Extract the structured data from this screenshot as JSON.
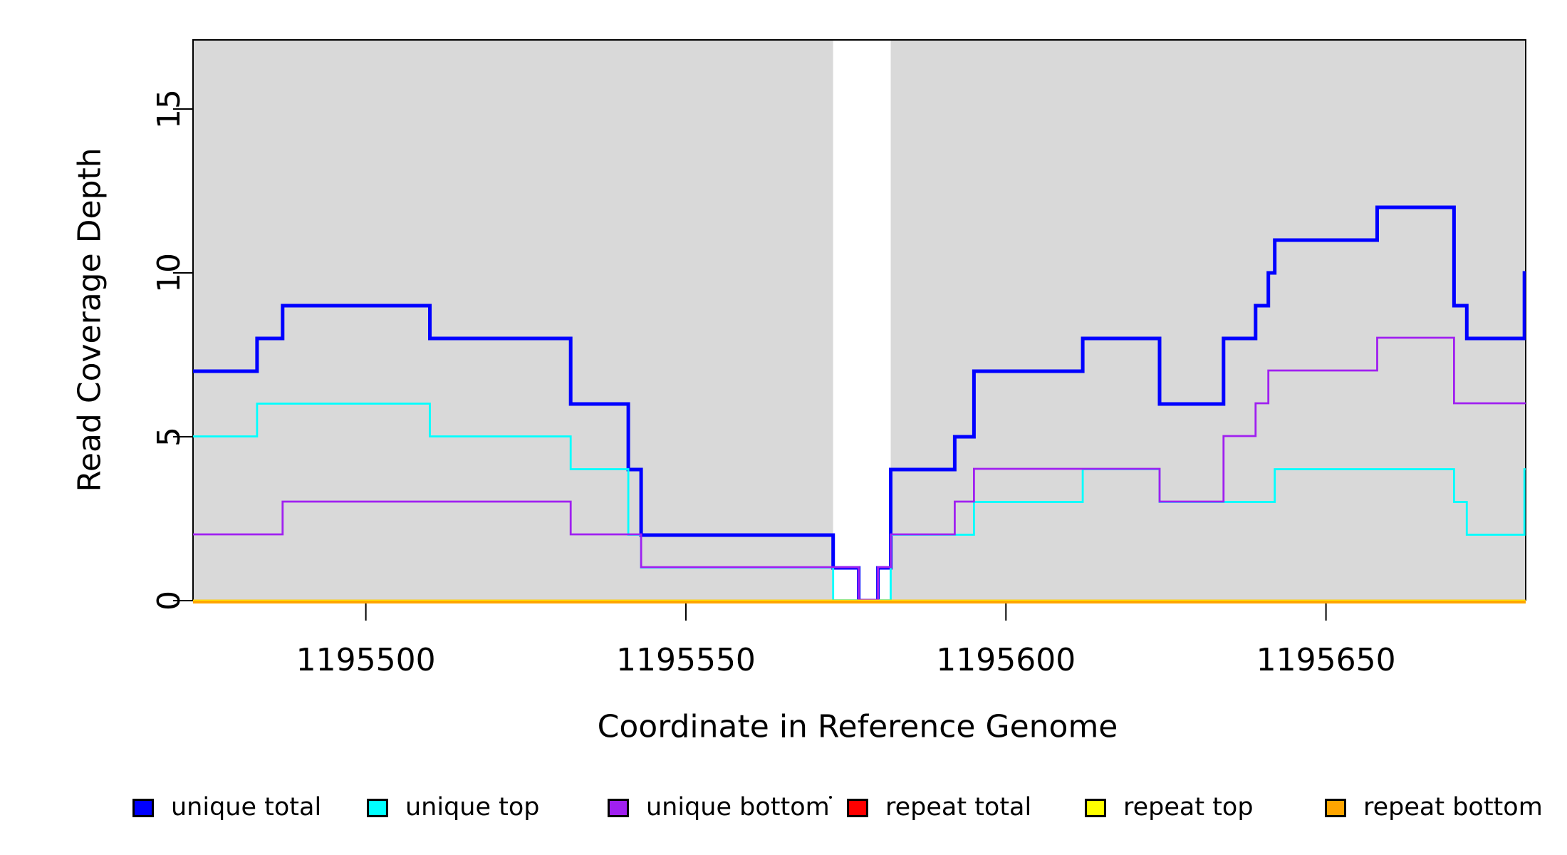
{
  "chart_data": {
    "type": "line",
    "subtype": "step",
    "title": "",
    "xlabel": "Coordinate in Reference Genome",
    "ylabel": "Read Coverage Depth",
    "xlim": [
      1195473,
      1195681.2
    ],
    "ylim": [
      0,
      17.11
    ],
    "x_ticks": [
      1195500,
      1195550,
      1195600,
      1195650
    ],
    "y_ticks": [
      0,
      5,
      10,
      15
    ],
    "grid": false,
    "plot_background": "#FFFFFF",
    "shaded_regions": [
      {
        "x_start": 1195473,
        "x_end": 1195573,
        "color": "#D9D9D9"
      },
      {
        "x_start": 1195582,
        "x_end": 1195681.2,
        "color": "#D9D9D9"
      }
    ],
    "box_color": "#000000",
    "tick_color": "#000000",
    "series": [
      {
        "name": "unique total",
        "color": "#0000FF",
        "line_width": 5,
        "steps": [
          [
            1195473,
            7
          ],
          [
            1195483,
            8
          ],
          [
            1195487,
            9
          ],
          [
            1195510,
            8
          ],
          [
            1195532,
            6
          ],
          [
            1195541,
            4
          ],
          [
            1195543,
            2
          ],
          [
            1195573,
            1
          ],
          [
            1195577,
            0
          ],
          [
            1195580,
            1
          ],
          [
            1195582,
            4
          ],
          [
            1195592,
            5
          ],
          [
            1195595,
            7
          ],
          [
            1195612,
            8
          ],
          [
            1195624,
            6
          ],
          [
            1195634,
            8
          ],
          [
            1195639,
            9
          ],
          [
            1195641,
            10
          ],
          [
            1195642,
            11
          ],
          [
            1195658,
            12
          ],
          [
            1195670,
            9
          ],
          [
            1195672,
            8
          ],
          [
            1195681,
            10
          ]
        ]
      },
      {
        "name": "unique top",
        "color": "#00FFFF",
        "line_width": 2.8,
        "steps": [
          [
            1195473,
            5
          ],
          [
            1195483,
            6
          ],
          [
            1195510,
            5
          ],
          [
            1195532,
            4
          ],
          [
            1195541,
            2
          ],
          [
            1195543,
            1
          ],
          [
            1195573,
            0
          ],
          [
            1195582,
            2
          ],
          [
            1195595,
            3
          ],
          [
            1195612,
            4
          ],
          [
            1195624,
            3
          ],
          [
            1195642,
            4
          ],
          [
            1195670,
            3
          ],
          [
            1195672,
            2
          ],
          [
            1195681,
            4
          ]
        ]
      },
      {
        "name": "unique bottom",
        "color": "#A020F0",
        "line_width": 2.8,
        "steps": [
          [
            1195473,
            2
          ],
          [
            1195487,
            3
          ],
          [
            1195532,
            2
          ],
          [
            1195543,
            1
          ],
          [
            1195577,
            0
          ],
          [
            1195580,
            1
          ],
          [
            1195582,
            2
          ],
          [
            1195592,
            3
          ],
          [
            1195595,
            4
          ],
          [
            1195624,
            3
          ],
          [
            1195634,
            5
          ],
          [
            1195639,
            6
          ],
          [
            1195641,
            7
          ],
          [
            1195658,
            8
          ],
          [
            1195670,
            6
          ]
        ]
      },
      {
        "name": "repeat total",
        "color": "#FF0000",
        "line_width": 2.8,
        "steps": [
          [
            1195473,
            0
          ]
        ]
      },
      {
        "name": "repeat top",
        "color": "#FFFF00",
        "line_width": 2.8,
        "steps": [
          [
            1195473,
            0
          ]
        ]
      },
      {
        "name": "repeat bottom",
        "color": "#FFA500",
        "line_width": 4.5,
        "steps": [
          [
            1195473,
            0
          ]
        ]
      }
    ],
    "legend": {
      "position": "bottom",
      "items": [
        {
          "label": "unique total",
          "color": "#0000FF"
        },
        {
          "label": "unique top",
          "color": "#00FFFF"
        },
        {
          "label": "unique bottom",
          "color": "#A020F0"
        },
        {
          "label": "repeat total",
          "color": "#FF0000"
        },
        {
          "label": "repeat top",
          "color": "#FFFF00"
        },
        {
          "label": "repeat bottom",
          "color": "#FFA500"
        }
      ]
    }
  }
}
